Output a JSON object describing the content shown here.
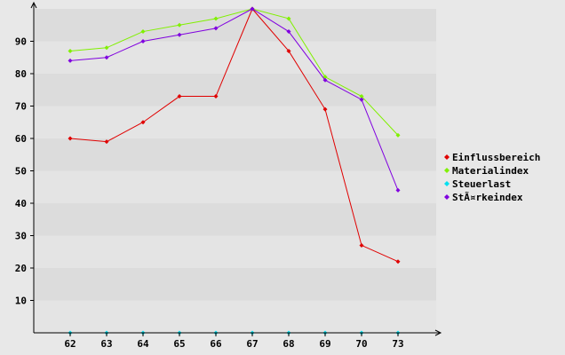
{
  "chart_data": {
    "type": "line",
    "title": "",
    "xlabel": "",
    "ylabel": "",
    "x": [
      62,
      63,
      64,
      65,
      66,
      67,
      68,
      69,
      70,
      73
    ],
    "x_tick_labels": [
      "62",
      "63",
      "64",
      "65",
      "66",
      "67",
      "68",
      "69",
      "70",
      "73"
    ],
    "ylim": [
      0,
      100
    ],
    "y_ticks": [
      10,
      20,
      30,
      40,
      50,
      60,
      70,
      80,
      90
    ],
    "grid": "horizontal bands",
    "legend_position": "right",
    "series": [
      {
        "name": "Einflussbereich",
        "color": "#e00000",
        "values": [
          60,
          59,
          65,
          73,
          73,
          100,
          87,
          69,
          27,
          22
        ]
      },
      {
        "name": "Materialindex",
        "color": "#80f000",
        "values": [
          87,
          88,
          93,
          95,
          97,
          100,
          97,
          79,
          73,
          61
        ]
      },
      {
        "name": "Steuerlast",
        "color": "#00e0f0",
        "values": [
          0,
          0,
          0,
          0,
          0,
          0,
          0,
          0,
          0,
          0
        ]
      },
      {
        "name": "StÃ¤rkeindex",
        "color": "#8000e0",
        "values": [
          84,
          85,
          90,
          92,
          94,
          100,
          93,
          78,
          72,
          44
        ]
      }
    ]
  }
}
